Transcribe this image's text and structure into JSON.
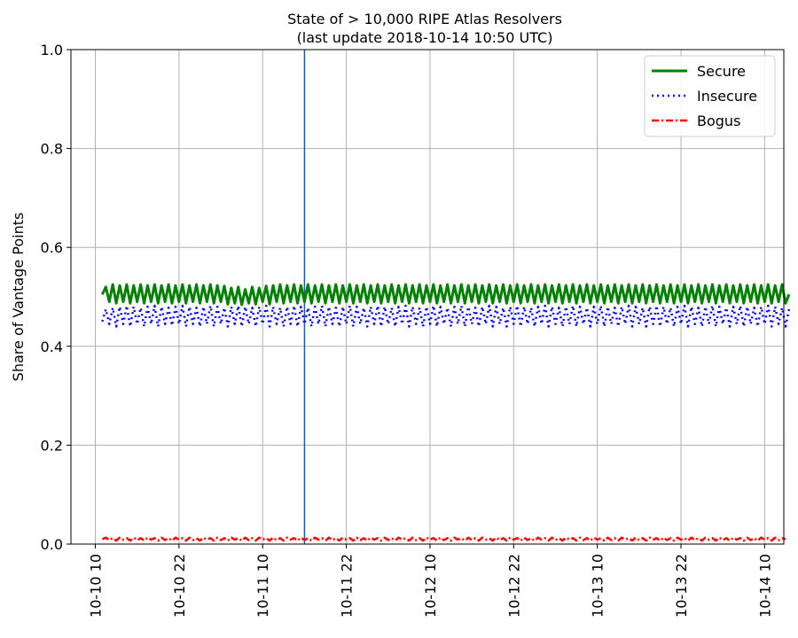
{
  "chart_data": {
    "type": "line",
    "title": "State of > 10,000 RIPE Atlas Resolvers",
    "subtitle": "(last update 2018-10-14 10:50 UTC)",
    "xlabel": "",
    "ylabel": "Share of Vantage Points",
    "ylim": [
      0,
      1.0
    ],
    "y_ticks": [
      "0.0",
      "0.2",
      "0.4",
      "0.6",
      "0.8",
      "1.0"
    ],
    "x_ticks": [
      "10-10 10",
      "10-10 22",
      "10-11 10",
      "10-11 22",
      "10-12 10",
      "10-12 22",
      "10-13 10",
      "10-13 22",
      "10-14 10"
    ],
    "x_range": [
      "2018-10-10 06:30",
      "2018-10-14 12:45"
    ],
    "grid": true,
    "legend_position": "top-right",
    "marker_line": {
      "x": "2018-10-11 16:00",
      "color": "#1f5a9e"
    },
    "series": [
      {
        "name": "Secure",
        "style": "solid",
        "color": "#008000",
        "x_start": "2018-10-10 11:00",
        "x_end": "2018-10-14 10:50",
        "sample_hours": 0.5,
        "values": [
          0.505,
          0.52,
          0.49,
          0.525,
          0.487,
          0.523,
          0.49,
          0.525,
          0.487,
          0.523,
          0.49,
          0.525,
          0.487,
          0.523,
          0.49,
          0.525,
          0.487,
          0.523,
          0.49,
          0.525,
          0.487,
          0.523,
          0.49,
          0.525,
          0.487,
          0.523,
          0.49,
          0.525,
          0.487,
          0.523,
          0.49,
          0.525,
          0.487,
          0.523,
          0.49,
          0.522,
          0.485,
          0.518,
          0.487,
          0.52,
          0.484,
          0.515,
          0.487,
          0.52,
          0.485,
          0.518,
          0.49,
          0.522,
          0.485,
          0.523,
          0.49,
          0.525,
          0.487,
          0.523,
          0.49,
          0.525,
          0.487,
          0.523,
          0.49,
          0.525,
          0.487,
          0.523,
          0.49,
          0.525,
          0.487,
          0.523,
          0.49,
          0.525,
          0.487,
          0.523,
          0.49,
          0.525,
          0.487,
          0.523,
          0.49,
          0.525,
          0.487,
          0.523,
          0.49,
          0.525,
          0.487,
          0.523,
          0.49,
          0.525,
          0.487,
          0.523,
          0.49,
          0.525,
          0.487,
          0.523,
          0.49,
          0.525,
          0.487,
          0.523,
          0.49,
          0.525,
          0.487,
          0.523,
          0.49,
          0.525,
          0.487,
          0.523,
          0.49,
          0.525,
          0.487,
          0.523,
          0.49,
          0.525,
          0.487,
          0.523,
          0.49,
          0.525,
          0.487,
          0.523,
          0.49,
          0.525,
          0.487,
          0.523,
          0.49,
          0.525,
          0.487,
          0.523,
          0.49,
          0.525,
          0.487,
          0.523,
          0.49,
          0.525,
          0.487,
          0.523,
          0.49,
          0.525,
          0.487,
          0.523,
          0.49,
          0.525,
          0.487,
          0.523,
          0.49,
          0.525,
          0.487,
          0.523,
          0.49,
          0.525,
          0.487,
          0.523,
          0.49,
          0.525,
          0.487,
          0.523,
          0.49,
          0.525,
          0.487,
          0.523,
          0.49,
          0.525,
          0.487,
          0.523,
          0.49,
          0.525,
          0.487,
          0.523,
          0.49,
          0.525,
          0.487,
          0.523,
          0.49,
          0.525,
          0.487,
          0.523,
          0.49,
          0.525,
          0.487,
          0.523,
          0.49,
          0.525,
          0.487,
          0.523,
          0.49,
          0.525,
          0.487,
          0.523,
          0.49,
          0.525,
          0.487,
          0.523,
          0.49,
          0.525,
          0.487,
          0.523,
          0.49,
          0.525,
          0.487,
          0.523,
          0.49,
          0.525,
          0.487,
          0.505
        ]
      },
      {
        "name": "Insecure",
        "style": "dotted",
        "color": "#0000ff",
        "x_start": "2018-10-10 11:00",
        "x_end": "2018-10-14 10:50",
        "sample_hours": 0.5,
        "values": [
          0.45,
          0.475,
          0.445,
          0.478,
          0.44,
          0.48,
          0.445,
          0.482,
          0.44,
          0.48,
          0.445,
          0.478,
          0.44,
          0.48,
          0.445,
          0.482,
          0.44,
          0.48,
          0.445,
          0.478,
          0.442,
          0.48,
          0.445,
          0.482,
          0.44,
          0.48,
          0.445,
          0.478,
          0.44,
          0.48,
          0.445,
          0.482,
          0.44,
          0.48,
          0.445,
          0.478,
          0.44,
          0.48,
          0.445,
          0.482,
          0.44,
          0.48,
          0.445,
          0.478,
          0.44,
          0.48,
          0.445,
          0.482,
          0.44,
          0.48,
          0.445,
          0.478,
          0.44,
          0.48,
          0.445,
          0.482,
          0.44,
          0.48,
          0.445,
          0.478,
          0.44,
          0.48,
          0.445,
          0.482,
          0.44,
          0.48,
          0.445,
          0.478,
          0.44,
          0.48,
          0.445,
          0.482,
          0.44,
          0.48,
          0.445,
          0.478,
          0.44,
          0.48,
          0.445,
          0.482,
          0.44,
          0.48,
          0.445,
          0.478,
          0.44,
          0.48,
          0.445,
          0.482,
          0.44,
          0.48,
          0.445,
          0.478,
          0.44,
          0.48,
          0.445,
          0.482,
          0.44,
          0.48,
          0.445,
          0.478,
          0.44,
          0.48,
          0.445,
          0.482,
          0.44,
          0.48,
          0.445,
          0.478,
          0.44,
          0.48,
          0.445,
          0.482,
          0.44,
          0.48,
          0.445,
          0.478,
          0.44,
          0.48,
          0.445,
          0.482,
          0.44,
          0.48,
          0.445,
          0.478,
          0.44,
          0.48,
          0.445,
          0.482,
          0.44,
          0.48,
          0.445,
          0.478,
          0.44,
          0.48,
          0.445,
          0.482,
          0.44,
          0.48,
          0.445,
          0.478,
          0.44,
          0.48,
          0.445,
          0.482,
          0.44,
          0.48,
          0.445,
          0.478,
          0.44,
          0.48,
          0.445,
          0.482,
          0.44,
          0.48,
          0.445,
          0.478,
          0.44,
          0.48,
          0.445,
          0.482,
          0.44,
          0.48,
          0.445,
          0.478,
          0.44,
          0.48,
          0.445,
          0.482,
          0.44,
          0.48,
          0.445,
          0.478,
          0.44,
          0.48,
          0.445,
          0.482,
          0.44,
          0.48,
          0.445,
          0.478,
          0.44,
          0.48,
          0.445,
          0.482,
          0.44,
          0.48,
          0.445,
          0.478,
          0.44,
          0.48,
          0.445,
          0.482,
          0.44,
          0.48,
          0.445,
          0.478,
          0.44,
          0.475
        ]
      },
      {
        "name": "Bogus",
        "style": "dashdot",
        "color": "#ff0000",
        "x_start": "2018-10-10 11:00",
        "x_end": "2018-10-14 10:50",
        "sample_hours": 0.5,
        "values": [
          0.01,
          0.013,
          0.008,
          0.012,
          0.007,
          0.013,
          0.009,
          0.012,
          0.007,
          0.013,
          0.008,
          0.012,
          0.007,
          0.013,
          0.009,
          0.012,
          0.007,
          0.013,
          0.008,
          0.012,
          0.007,
          0.013,
          0.009,
          0.012,
          0.007,
          0.013,
          0.008,
          0.012,
          0.007,
          0.013,
          0.009,
          0.012,
          0.007,
          0.013,
          0.008,
          0.012,
          0.007,
          0.013,
          0.009,
          0.012,
          0.007,
          0.013,
          0.008,
          0.012,
          0.007,
          0.013,
          0.009,
          0.012,
          0.007,
          0.013,
          0.008,
          0.012,
          0.007,
          0.013,
          0.009,
          0.012,
          0.007,
          0.013,
          0.008,
          0.012,
          0.007,
          0.013,
          0.009,
          0.012,
          0.007,
          0.013,
          0.008,
          0.012,
          0.007,
          0.013,
          0.009,
          0.012,
          0.007,
          0.013,
          0.008,
          0.012,
          0.007,
          0.013,
          0.009,
          0.012,
          0.007,
          0.013,
          0.008,
          0.012,
          0.007,
          0.013,
          0.009,
          0.012,
          0.007,
          0.013,
          0.008,
          0.012,
          0.007,
          0.013,
          0.009,
          0.012,
          0.007,
          0.013,
          0.008,
          0.012,
          0.007,
          0.013,
          0.009,
          0.012,
          0.007,
          0.013,
          0.008,
          0.012,
          0.007,
          0.013,
          0.009,
          0.012,
          0.007,
          0.013,
          0.008,
          0.012,
          0.007,
          0.013,
          0.009,
          0.012,
          0.007,
          0.013,
          0.008,
          0.012,
          0.007,
          0.013,
          0.009,
          0.012,
          0.007,
          0.013,
          0.008,
          0.012,
          0.007,
          0.013,
          0.009,
          0.012,
          0.007,
          0.013,
          0.008,
          0.012,
          0.007,
          0.013,
          0.009,
          0.012,
          0.007,
          0.013,
          0.008,
          0.012,
          0.007,
          0.013,
          0.009,
          0.012,
          0.007,
          0.013,
          0.008,
          0.012,
          0.007,
          0.013,
          0.009,
          0.012,
          0.007,
          0.013,
          0.008,
          0.012,
          0.007,
          0.013,
          0.009,
          0.012,
          0.007,
          0.013,
          0.008,
          0.012,
          0.007,
          0.013,
          0.009,
          0.012,
          0.007,
          0.013,
          0.008,
          0.012,
          0.007,
          0.013,
          0.009,
          0.012,
          0.007,
          0.013,
          0.008,
          0.012,
          0.007,
          0.013,
          0.009,
          0.012,
          0.007,
          0.013,
          0.008,
          0.012,
          0.01
        ]
      }
    ]
  }
}
